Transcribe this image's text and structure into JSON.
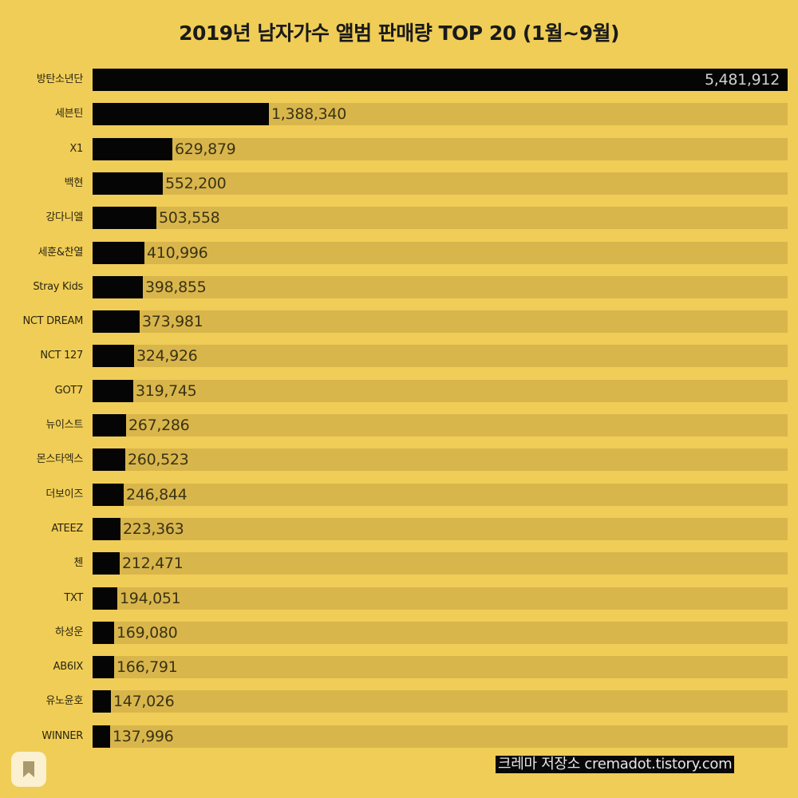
{
  "chart_data": {
    "type": "bar",
    "orientation": "horizontal",
    "title": "2019년 남자가수 앨범 판매량 TOP 20 (1월~9월)",
    "xlabel": "",
    "ylabel": "",
    "grid": false,
    "legend": null,
    "xlim": [
      0,
      5481912
    ],
    "categories": [
      "방탄소년단",
      "세븐틴",
      "X1",
      "백현",
      "강다니엘",
      "세훈&찬열",
      "Stray Kids",
      "NCT DREAM",
      "NCT 127",
      "GOT7",
      "뉴이스트",
      "몬스타엑스",
      "더보이즈",
      "ATEEZ",
      "첸",
      "TXT",
      "하성운",
      "AB6IX",
      "유노윤호",
      "WINNER"
    ],
    "values": [
      5481912,
      1388340,
      629879,
      552200,
      503558,
      410996,
      398855,
      373981,
      324926,
      319745,
      267286,
      260523,
      246844,
      223363,
      212471,
      194051,
      169080,
      166791,
      147026,
      137996
    ],
    "value_labels": [
      "5,481,912",
      "1,388,340",
      "629,879",
      "552,200",
      "503,558",
      "410,996",
      "398,855",
      "373,981",
      "324,926",
      "319,745",
      "267,286",
      "260,523",
      "246,844",
      "223,363",
      "212,471",
      "194,051",
      "169,080",
      "166,791",
      "147,026",
      "137,996"
    ],
    "colors": {
      "background": "#f0cd56",
      "bar": "#050505",
      "track": "#d9b64c"
    }
  },
  "footer": {
    "credit": "크레마 저장소 cremadot.tistory.com"
  },
  "ui": {
    "bookmark_icon": "bookmark-icon"
  }
}
